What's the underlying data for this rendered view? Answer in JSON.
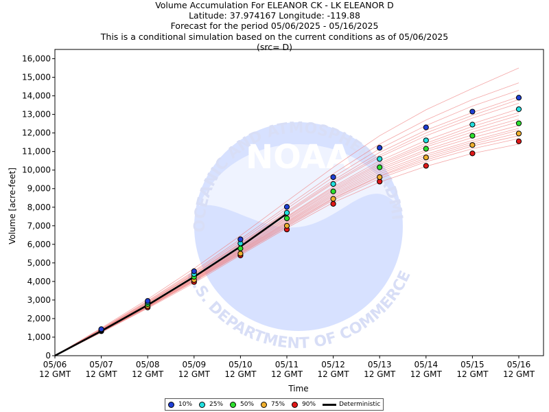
{
  "titles": [
    "Volume Accumulation For ELEANOR CK - LK ELEANOR D",
    "Latitude: 37.974167 Longitude: -119.88",
    "Forecast for the period 05/06/2025 - 05/16/2025",
    "This is a conditional simulation based on the current conditions as of 05/06/2025",
    "(src= D)"
  ],
  "watermark": {
    "logo_text": "NOAA",
    "ring_text_top": "NATIONAL OCEANIC AND ATMOSPHERIC ADMINISTRATION",
    "ring_text_bottom": "U.S. DEPARTMENT OF COMMERCE"
  },
  "chart_data": {
    "type": "line",
    "xlabel": "Time",
    "ylabel": "Volume [acre-feet]",
    "ylim": [
      0,
      16500
    ],
    "y_ticks": [
      "0",
      "1,000",
      "2,000",
      "3,000",
      "4,000",
      "5,000",
      "6,000",
      "7,000",
      "8,000",
      "9,000",
      "10,000",
      "11,000",
      "12,000",
      "13,000",
      "14,000",
      "15,000",
      "16,000"
    ],
    "x_ticks": [
      {
        "date": "05/06",
        "time": "12 GMT"
      },
      {
        "date": "05/07",
        "time": "12 GMT"
      },
      {
        "date": "05/08",
        "time": "12 GMT"
      },
      {
        "date": "05/09",
        "time": "12 GMT"
      },
      {
        "date": "05/10",
        "time": "12 GMT"
      },
      {
        "date": "05/11",
        "time": "12 GMT"
      },
      {
        "date": "05/12",
        "time": "12 GMT"
      },
      {
        "date": "05/13",
        "time": "12 GMT"
      },
      {
        "date": "05/14",
        "time": "12 GMT"
      },
      {
        "date": "05/15",
        "time": "12 GMT"
      },
      {
        "date": "05/16",
        "time": "12 GMT"
      }
    ],
    "grid": false,
    "legend_position": "bottom-center",
    "exceedance_series": [
      {
        "name": "10%",
        "color": "#1f3fd6",
        "values": [
          1430,
          2950,
          4550,
          6270,
          8020,
          9620,
          11200,
          12300,
          13150,
          13900
        ]
      },
      {
        "name": "25%",
        "color": "#22e0e0",
        "values": [
          1400,
          2880,
          4400,
          6050,
          7700,
          9250,
          10600,
          11600,
          12450,
          13280
        ]
      },
      {
        "name": "50%",
        "color": "#2ee02e",
        "values": [
          1380,
          2780,
          4250,
          5780,
          7400,
          8850,
          10150,
          11150,
          11850,
          12520
        ]
      },
      {
        "name": "75%",
        "color": "#f0b030",
        "values": [
          1350,
          2680,
          4080,
          5500,
          7000,
          8450,
          9620,
          10680,
          11350,
          11970
        ]
      },
      {
        "name": "90%",
        "color": "#e01818",
        "values": [
          1320,
          2600,
          3970,
          5400,
          6800,
          8180,
          9380,
          10230,
          10900,
          11550
        ]
      }
    ],
    "deterministic": {
      "name": "Deterministic",
      "color": "#000000",
      "x_index": [
        0,
        1,
        2,
        3,
        4,
        5
      ],
      "values": [
        0,
        1330,
        2730,
        4250,
        5880,
        7650
      ]
    },
    "ensemble_traces": [
      [
        0,
        1250,
        2550,
        3920,
        5420,
        6880,
        8250,
        9350,
        10200,
        10900,
        11400
      ],
      [
        0,
        1290,
        2620,
        4050,
        5550,
        7050,
        8500,
        9700,
        10650,
        11400,
        12000
      ],
      [
        0,
        1330,
        2700,
        4150,
        5700,
        7250,
        8800,
        10100,
        11100,
        11900,
        12600
      ],
      [
        0,
        1370,
        2780,
        4280,
        5880,
        7500,
        9100,
        10500,
        11600,
        12500,
        13300
      ],
      [
        0,
        1410,
        2870,
        4420,
        6080,
        7780,
        9450,
        10950,
        12150,
        13100,
        13950
      ],
      [
        0,
        1450,
        2950,
        4560,
        6280,
        8050,
        9800,
        11400,
        12700,
        13800,
        14700
      ],
      [
        0,
        1490,
        3040,
        4700,
        6470,
        8320,
        10150,
        11850,
        13250,
        14400,
        15500
      ],
      [
        0,
        1310,
        2660,
        4100,
        5630,
        7150,
        8650,
        9900,
        10850,
        11600,
        12250
      ],
      [
        0,
        1350,
        2740,
        4200,
        5780,
        7380,
        8950,
        10300,
        11350,
        12200,
        12950
      ],
      [
        0,
        1270,
        2590,
        3990,
        5480,
        6950,
        8380,
        9550,
        10450,
        11150,
        11700
      ],
      [
        0,
        1390,
        2820,
        4350,
        5980,
        7650,
        9280,
        10700,
        11850,
        12800,
        13600
      ],
      [
        0,
        1430,
        2910,
        4490,
        6180,
        7920,
        9620,
        11150,
        12400,
        13450,
        14300
      ],
      [
        0,
        1300,
        2640,
        4070,
        5590,
        7100,
        8580,
        9800,
        10750,
        11500,
        12150
      ],
      [
        0,
        1340,
        2720,
        4180,
        5740,
        7320,
        8880,
        10200,
        11250,
        12050,
        12750
      ],
      [
        0,
        1360,
        2760,
        4240,
        5830,
        7450,
        9030,
        10380,
        11450,
        12350,
        13100
      ],
      [
        0,
        1280,
        2600,
        4010,
        5510,
        7000,
        8450,
        9650,
        10550,
        11300,
        11850
      ],
      [
        0,
        1320,
        2680,
        4120,
        5660,
        7200,
        8720,
        10000,
        11000,
        11750,
        12400
      ],
      [
        0,
        1400,
        2850,
        4380,
        6030,
        7720,
        9350,
        10800,
        12000,
        12950,
        13800
      ]
    ]
  },
  "legend": {
    "items": [
      {
        "label": "10%",
        "color": "#1f3fd6"
      },
      {
        "label": "25%",
        "color": "#22e0e0"
      },
      {
        "label": "50%",
        "color": "#2ee02e"
      },
      {
        "label": "75%",
        "color": "#f0b030"
      },
      {
        "label": "90%",
        "color": "#e01818"
      }
    ],
    "deterministic_label": "Deterministic"
  }
}
